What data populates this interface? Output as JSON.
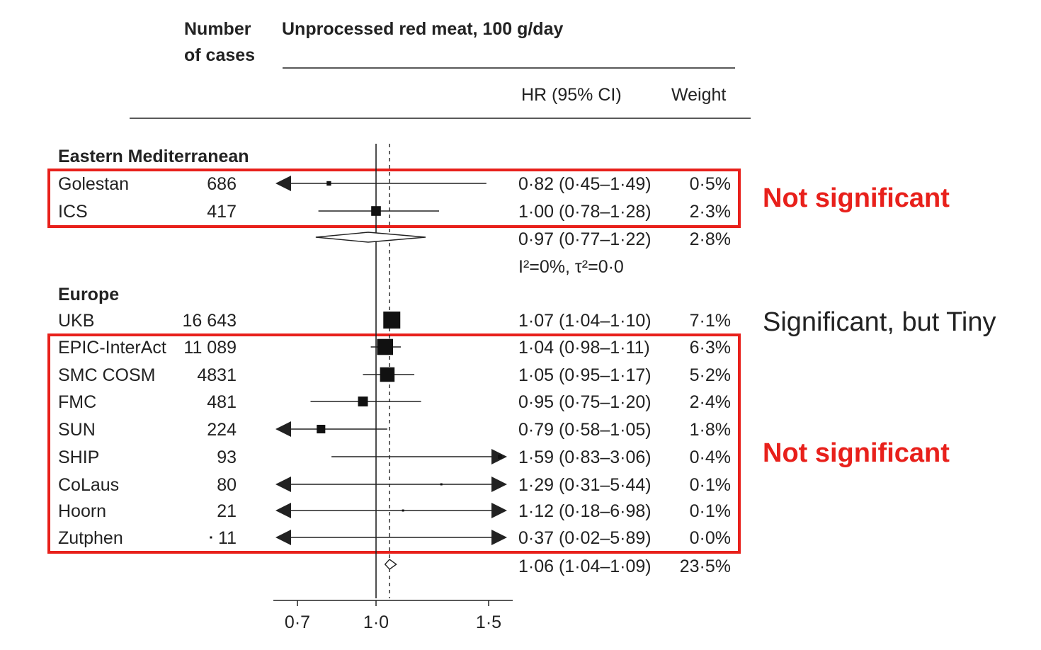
{
  "chart_data": {
    "type": "forest",
    "header": {
      "cases_label_line1": "Number",
      "cases_label_line2": "of cases",
      "exposure_label": "Unprocessed red meat, 100 g/day",
      "hr_label": "HR (95% CI)",
      "weight_label": "Weight"
    },
    "x_ticks": [
      {
        "value": 0.7,
        "label": "0·7"
      },
      {
        "value": 1.0,
        "label": "1·0"
      },
      {
        "value": 1.5,
        "label": "1·5"
      }
    ],
    "xlim": [
      0.5,
      1.6
    ],
    "null_value": 1.0,
    "reference_line": 1.06,
    "groups": [
      {
        "name": "Eastern Mediterranean",
        "studies": [
          {
            "name": "Golestan",
            "cases": "686",
            "hr": 0.82,
            "lo": 0.45,
            "hi": 1.49,
            "hr_text": "0·82 (0·45–1·49)",
            "weight": 0.5,
            "weight_text": "0·5%"
          },
          {
            "name": "ICS",
            "cases": "417",
            "hr": 1.0,
            "lo": 0.78,
            "hi": 1.28,
            "hr_text": "1·00 (0·78–1·28)",
            "weight": 2.3,
            "weight_text": "2·3%"
          }
        ],
        "summary": {
          "hr": 0.97,
          "lo": 0.77,
          "hi": 1.22,
          "hr_text": "0·97 (0·77–1·22)",
          "weight_text": "2·8%",
          "heterogeneity": "I²=0%, τ²=0·0"
        }
      },
      {
        "name": "Europe",
        "studies": [
          {
            "name": "UKB",
            "cases": "16 643",
            "hr": 1.07,
            "lo": 1.04,
            "hi": 1.1,
            "hr_text": "1·07 (1·04–1·10)",
            "weight": 7.1,
            "weight_text": "7·1%"
          },
          {
            "name": "EPIC-InterAct",
            "cases": "11 089",
            "hr": 1.04,
            "lo": 0.98,
            "hi": 1.11,
            "hr_text": "1·04 (0·98–1·11)",
            "weight": 6.3,
            "weight_text": "6·3%"
          },
          {
            "name": "SMC COSM",
            "cases": "4831",
            "hr": 1.05,
            "lo": 0.95,
            "hi": 1.17,
            "hr_text": "1·05 (0·95–1·17)",
            "weight": 5.2,
            "weight_text": "5·2%"
          },
          {
            "name": "FMC",
            "cases": "481",
            "hr": 0.95,
            "lo": 0.75,
            "hi": 1.2,
            "hr_text": "0·95 (0·75–1·20)",
            "weight": 2.4,
            "weight_text": "2·4%"
          },
          {
            "name": "SUN",
            "cases": "224",
            "hr": 0.79,
            "lo": 0.58,
            "hi": 1.05,
            "hr_text": "0·79 (0·58–1·05)",
            "weight": 1.8,
            "weight_text": "1·8%"
          },
          {
            "name": "SHIP",
            "cases": "93",
            "hr": 1.59,
            "lo": 0.83,
            "hi": 3.06,
            "hr_text": "1·59 (0·83–3·06)",
            "weight": 0.4,
            "weight_text": "0·4%"
          },
          {
            "name": "CoLaus",
            "cases": "80",
            "hr": 1.29,
            "lo": 0.31,
            "hi": 5.44,
            "hr_text": "1·29 (0·31–5·44)",
            "weight": 0.1,
            "weight_text": "0·1%"
          },
          {
            "name": "Hoorn",
            "cases": "21",
            "hr": 1.12,
            "lo": 0.18,
            "hi": 6.98,
            "hr_text": "1·12 (0·18–6·98)",
            "weight": 0.1,
            "weight_text": "0·1%"
          },
          {
            "name": "Zutphen",
            "cases": "11",
            "hr": 0.37,
            "lo": 0.02,
            "hi": 5.89,
            "hr_text": "0·37 (0·02–5·89)",
            "weight": 0.0,
            "weight_text": "0·0%"
          }
        ],
        "summary": {
          "hr": 1.06,
          "lo": 1.04,
          "hi": 1.09,
          "hr_text": "1·06 (1·04–1·09)",
          "weight_text": "23·5%"
        }
      }
    ]
  },
  "annotations": {
    "box1_label": "Not significant",
    "ukb_label": "Significant, but Tiny",
    "box2_label": "Not significant"
  },
  "colors": {
    "highlight": "#e8201b",
    "ink": "#222222"
  }
}
